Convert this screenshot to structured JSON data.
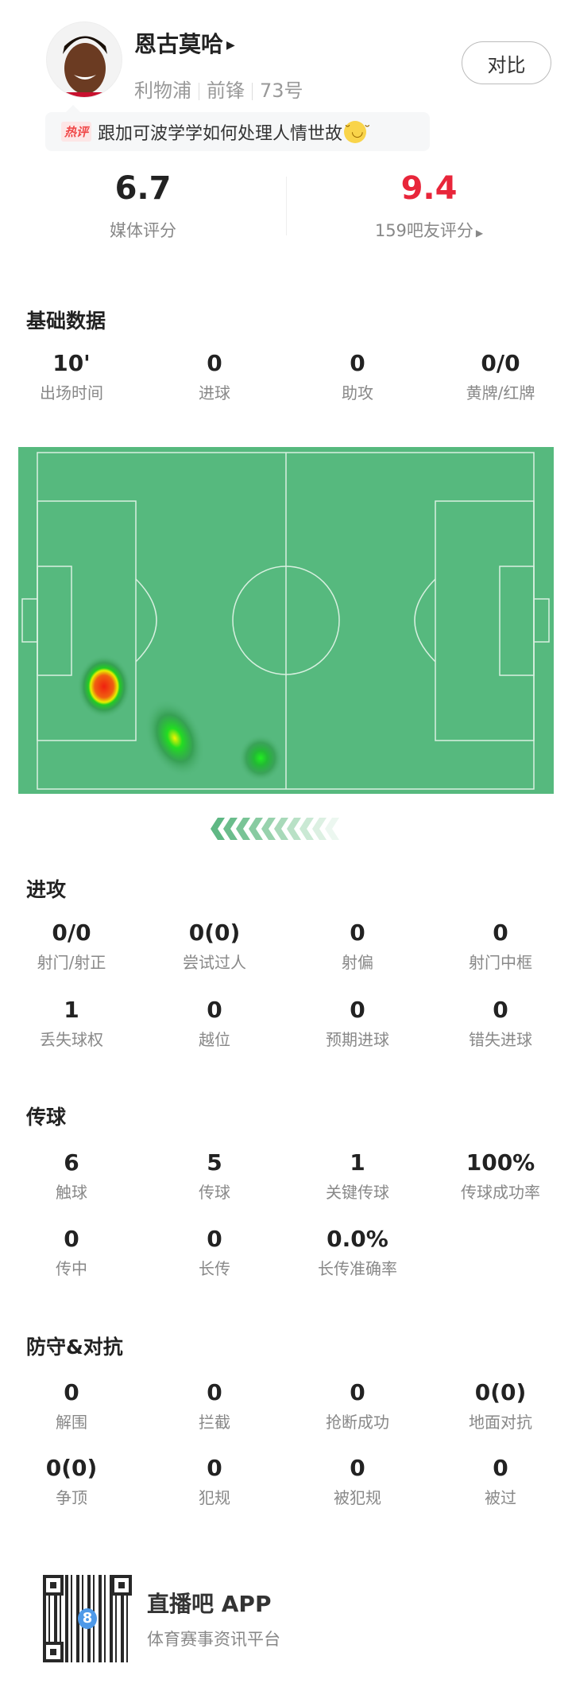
{
  "player": {
    "name": "恩古莫哈",
    "team": "利物浦",
    "position": "前锋",
    "number": "73号",
    "compare_label": "对比"
  },
  "hot_comment": {
    "tag": "热评",
    "text": "跟加可波学学如何处理人情世故",
    "emoji": "smile-emoji"
  },
  "ratings": {
    "media": {
      "value": "6.7",
      "label": "媒体评分",
      "color": "#222222"
    },
    "fans": {
      "value": "9.4",
      "label": "159吧友评分",
      "color": "#e8253a"
    }
  },
  "basic": {
    "title": "基础数据",
    "items": [
      {
        "v": "10'",
        "l": "出场时间"
      },
      {
        "v": "0",
        "l": "进球"
      },
      {
        "v": "0",
        "l": "助攻"
      },
      {
        "v": "0/0",
        "l": "黄牌/红牌"
      }
    ]
  },
  "heatmap": {
    "pitch_color": "#56b97e",
    "line_color": "#d8f0e0",
    "attack_direction": "left"
  },
  "attack": {
    "title": "进攻",
    "rows": [
      [
        {
          "v": "0/0",
          "l": "射门/射正"
        },
        {
          "v": "0(0)",
          "l": "尝试过人"
        },
        {
          "v": "0",
          "l": "射偏"
        },
        {
          "v": "0",
          "l": "射门中框"
        }
      ],
      [
        {
          "v": "1",
          "l": "丢失球权"
        },
        {
          "v": "0",
          "l": "越位"
        },
        {
          "v": "0",
          "l": "预期进球"
        },
        {
          "v": "0",
          "l": "错失进球"
        }
      ]
    ]
  },
  "passing": {
    "title": "传球",
    "rows": [
      [
        {
          "v": "6",
          "l": "触球"
        },
        {
          "v": "5",
          "l": "传球"
        },
        {
          "v": "1",
          "l": "关键传球"
        },
        {
          "v": "100%",
          "l": "传球成功率"
        }
      ],
      [
        {
          "v": "0",
          "l": "传中"
        },
        {
          "v": "0",
          "l": "长传"
        },
        {
          "v": "0.0%",
          "l": "长传准确率"
        }
      ]
    ]
  },
  "defense": {
    "title": "防守&对抗",
    "rows": [
      [
        {
          "v": "0",
          "l": "解围"
        },
        {
          "v": "0",
          "l": "拦截"
        },
        {
          "v": "0",
          "l": "抢断成功"
        },
        {
          "v": "0(0)",
          "l": "地面对抗"
        }
      ],
      [
        {
          "v": "0(0)",
          "l": "争顶"
        },
        {
          "v": "0",
          "l": "犯规"
        },
        {
          "v": "0",
          "l": "被犯规"
        },
        {
          "v": "0",
          "l": "被过"
        }
      ]
    ]
  },
  "footer": {
    "app_name": "直播吧 APP",
    "tagline": "体育赛事资讯平台",
    "qr_logo": "8"
  }
}
